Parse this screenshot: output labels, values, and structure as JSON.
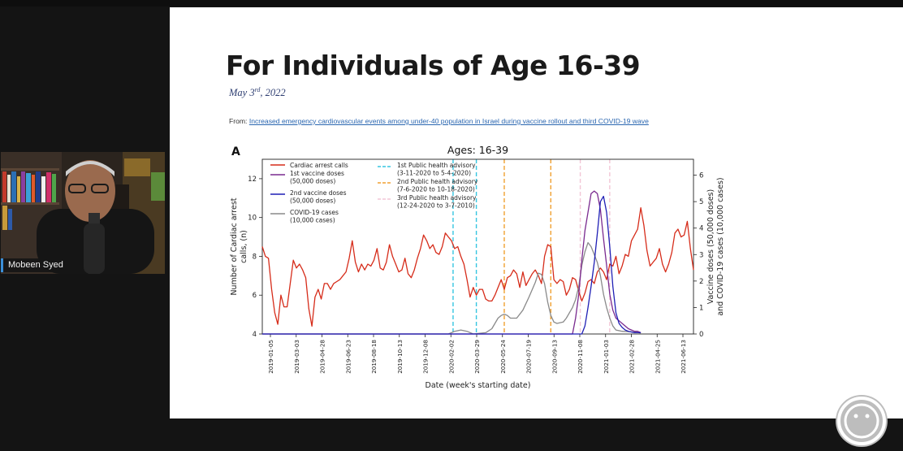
{
  "slide": {
    "title": "For Individuals of Age 16-39",
    "date_month_day": "May 3",
    "date_suffix": "rd",
    "date_year": ", 2022",
    "source_prefix": "From: ",
    "source_link": "Increased emergency cardiovascular events among under-40 population in Israel during vaccine rollout and third COVID-19 wave"
  },
  "participant": {
    "name": "Mobeen Syed"
  },
  "colors": {
    "cardiac": "#d62c1a",
    "vaccine1": "#7a2a8f",
    "vaccine2": "#1f1fb5",
    "covid": "#8a8a8a",
    "advisory1": "#36c6e0",
    "advisory2": "#f0a030",
    "advisory3": "#f2c6d6"
  },
  "chart_data": {
    "type": "line",
    "panel_label": "A",
    "title": "Ages: 16-39",
    "xlabel": "Date (week's starting date)",
    "ylabel_left": [
      "Number of Cardiac arrest",
      "calls, (n)"
    ],
    "ylabel_right": [
      "Vaccine doses (50,000 doses)",
      "and COVID-19 cases (10,000 cases)"
    ],
    "x_tick_labels": [
      "2019-01-05",
      "2019-03-03",
      "2019-04-28",
      "2019-06-23",
      "2019-08-18",
      "2019-10-13",
      "2019-12-08",
      "2020-02-02",
      "2020-03-29",
      "2020-05-24",
      "2020-07-19",
      "2020-09-13",
      "2020-11-08",
      "2021-01-03",
      "2021-02-28",
      "2021-04-25",
      "2021-06-13"
    ],
    "y_left_ticks": [
      4,
      6,
      8,
      10,
      12
    ],
    "y_left_range": [
      4,
      13
    ],
    "y_right_ticks": [
      0,
      1,
      2,
      3,
      4,
      5,
      6
    ],
    "y_right_range": [
      0,
      6.6
    ],
    "legend": [
      {
        "label": [
          "Cardiac arrest calls"
        ],
        "style": "cardiac"
      },
      {
        "label": [
          "1st vaccine doses",
          "(50,000 doses)"
        ],
        "style": "vaccine1"
      },
      {
        "label": [
          "2nd vaccine doses",
          "(50,000 doses)"
        ],
        "style": "vaccine2"
      },
      {
        "label": [
          "COVID-19 cases",
          "(10,000 cases)"
        ],
        "style": "covid"
      },
      {
        "label": [
          "1st Public health advisory",
          "(3-11-2020 to 5-4-2020)"
        ],
        "style": "advisory1"
      },
      {
        "label": [
          "2nd Public health advisory",
          "(7-6-2020 to 10-18-2020)"
        ],
        "style": "advisory2"
      },
      {
        "label": [
          "3rd Public health advisory",
          "(12-24-2020 to 3-7-2010)"
        ],
        "style": "advisory3"
      }
    ],
    "advisory_lines": [
      {
        "style": "advisory1",
        "weeks": [
          61.5,
          69
        ]
      },
      {
        "style": "advisory2",
        "weeks": [
          78,
          93
        ]
      },
      {
        "style": "advisory3",
        "weeks": [
          102.5,
          112
        ]
      }
    ],
    "series": [
      {
        "name": "Cardiac arrest calls",
        "style": "cardiac",
        "axis": "left",
        "values": [
          8.5,
          8.0,
          7.9,
          6.3,
          5.1,
          4.5,
          6.0,
          5.4,
          5.4,
          6.6,
          7.8,
          7.4,
          7.6,
          7.3,
          6.9,
          5.3,
          4.4,
          5.9,
          6.3,
          5.8,
          6.6,
          6.6,
          6.3,
          6.6,
          6.7,
          6.8,
          7.0,
          7.2,
          7.9,
          8.8,
          7.7,
          7.2,
          7.6,
          7.3,
          7.6,
          7.5,
          7.8,
          8.4,
          7.4,
          7.3,
          7.7,
          8.6,
          8.0,
          7.6,
          7.2,
          7.3,
          7.9,
          7.1,
          6.9,
          7.3,
          7.9,
          8.4,
          9.1,
          8.8,
          8.4,
          8.6,
          8.2,
          8.1,
          8.5,
          9.2,
          9.0,
          8.8,
          8.4,
          8.5,
          8.0,
          7.6,
          6.8,
          5.9,
          6.4,
          6.0,
          6.3,
          6.3,
          5.8,
          5.7,
          5.7,
          6.0,
          6.4,
          6.8,
          6.3,
          6.9,
          7.0,
          7.3,
          7.1,
          6.4,
          7.2,
          6.5,
          6.8,
          7.1,
          7.3,
          7.0,
          6.6,
          8.0,
          8.6,
          8.5,
          6.8,
          6.6,
          6.8,
          6.7,
          6.0,
          6.3,
          6.9,
          6.8,
          6.2,
          5.7,
          6.1,
          6.7,
          6.8,
          6.6,
          7.2,
          7.4,
          7.2,
          6.8,
          7.6,
          7.5,
          8.0,
          7.1,
          7.5,
          8.1,
          8.0,
          8.8,
          9.1,
          9.4,
          10.5,
          9.6,
          8.3,
          7.5,
          7.7,
          7.9,
          8.4,
          7.6,
          7.2,
          7.6,
          8.2,
          9.2,
          9.4,
          9.0,
          9.1,
          9.8,
          8.4,
          7.3
        ]
      },
      {
        "name": "COVID-19 cases",
        "style": "covid",
        "axis": "right",
        "points": [
          [
            0,
            0
          ],
          [
            60,
            0
          ],
          [
            61,
            0.05
          ],
          [
            62,
            0.1
          ],
          [
            64,
            0.15
          ],
          [
            66,
            0.1
          ],
          [
            68,
            0
          ],
          [
            72,
            0.05
          ],
          [
            74,
            0.2
          ],
          [
            75,
            0.4
          ],
          [
            76,
            0.6
          ],
          [
            77,
            0.7
          ],
          [
            78,
            0.75
          ],
          [
            79,
            0.7
          ],
          [
            80,
            0.6
          ],
          [
            82,
            0.6
          ],
          [
            84,
            0.9
          ],
          [
            86,
            1.4
          ],
          [
            88,
            1.95
          ],
          [
            89,
            2.3
          ],
          [
            90,
            2.25
          ],
          [
            91,
            1.9
          ],
          [
            92,
            1.2
          ],
          [
            93,
            0.7
          ],
          [
            94,
            0.45
          ],
          [
            95,
            0.4
          ],
          [
            97,
            0.45
          ],
          [
            98,
            0.6
          ],
          [
            99,
            0.8
          ],
          [
            100,
            1.0
          ],
          [
            101,
            1.3
          ],
          [
            102,
            1.8
          ],
          [
            103,
            2.6
          ],
          [
            104,
            3.1
          ],
          [
            105,
            3.45
          ],
          [
            106,
            3.3
          ],
          [
            107,
            3.0
          ],
          [
            108,
            2.7
          ],
          [
            109,
            2.2
          ],
          [
            110,
            1.5
          ],
          [
            111,
            1.0
          ],
          [
            112,
            0.6
          ],
          [
            113,
            0.3
          ],
          [
            114,
            0.15
          ],
          [
            116,
            0.1
          ],
          [
            119,
            0.08
          ],
          [
            122,
            0.04
          ]
        ]
      },
      {
        "name": "1st vaccine doses",
        "style": "vaccine1",
        "axis": "right",
        "points": [
          [
            0,
            0
          ],
          [
            100,
            0
          ],
          [
            101,
            0.6
          ],
          [
            102,
            1.5
          ],
          [
            103,
            2.8
          ],
          [
            104,
            3.9
          ],
          [
            105,
            4.6
          ],
          [
            106,
            5.3
          ],
          [
            107,
            5.4
          ],
          [
            108,
            5.3
          ],
          [
            109,
            4.7
          ],
          [
            110,
            3.6
          ],
          [
            111,
            2.6
          ],
          [
            112,
            1.5
          ],
          [
            113,
            0.9
          ],
          [
            114,
            0.6
          ],
          [
            115,
            0.5
          ],
          [
            116,
            0.4
          ],
          [
            117,
            0.3
          ],
          [
            118,
            0.2
          ],
          [
            119,
            0.15
          ],
          [
            120,
            0.1
          ],
          [
            121,
            0.1
          ],
          [
            122,
            0.05
          ]
        ]
      },
      {
        "name": "2nd vaccine doses",
        "style": "vaccine2",
        "axis": "right",
        "points": [
          [
            0,
            0
          ],
          [
            103,
            0
          ],
          [
            104,
            0.3
          ],
          [
            105,
            1.0
          ],
          [
            106,
            1.8
          ],
          [
            107,
            2.7
          ],
          [
            108,
            3.8
          ],
          [
            109,
            5.0
          ],
          [
            110,
            5.2
          ],
          [
            111,
            4.6
          ],
          [
            112,
            3.3
          ],
          [
            113,
            1.8
          ],
          [
            114,
            0.8
          ],
          [
            115,
            0.4
          ],
          [
            116,
            0.25
          ],
          [
            117,
            0.15
          ],
          [
            118,
            0.1
          ],
          [
            120,
            0.05
          ],
          [
            122,
            0.05
          ]
        ]
      }
    ]
  }
}
